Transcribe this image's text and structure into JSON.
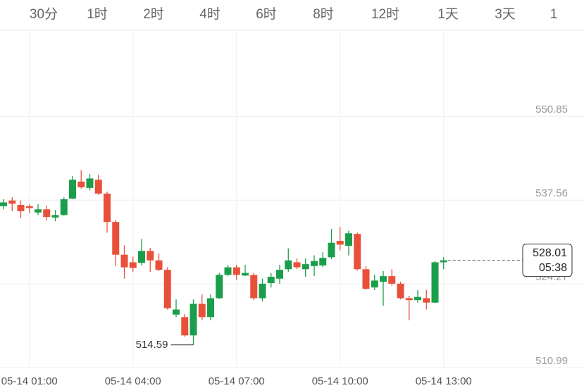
{
  "tabs": [
    "30分",
    "1时",
    "2时",
    "4时",
    "6时",
    "8时",
    "12时",
    "1天",
    "3天",
    "1"
  ],
  "chart_data": {
    "type": "candlestick",
    "categories": [
      null,
      null,
      null,
      "05-14 01:00",
      null,
      null,
      null,
      null,
      null,
      null,
      null,
      null,
      null,
      null,
      null,
      "05-14 04:00",
      null,
      null,
      null,
      null,
      null,
      null,
      null,
      null,
      null,
      null,
      null,
      "05-14 07:00",
      null,
      null,
      null,
      null,
      null,
      null,
      null,
      null,
      null,
      null,
      null,
      "05-14 10:00",
      null,
      null,
      null,
      null,
      null,
      null,
      null,
      null,
      null,
      null,
      null,
      "05-14 13:00"
    ],
    "open": [
      536.6,
      537.5,
      536.8,
      536.6,
      535.6,
      536.1,
      534.8,
      535.2,
      537.8,
      540.5,
      539.5,
      540.8,
      538.6,
      534.1,
      528.9,
      527.7,
      527.6,
      529.5,
      528.0,
      526.5,
      519.4,
      519.0,
      516.1,
      521.1,
      519.0,
      522.0,
      525.7,
      526.9,
      525.6,
      525.7,
      522.0,
      524.4,
      525.1,
      526.6,
      527.7,
      526.6,
      527.1,
      527.2,
      528.5,
      531.1,
      530.3,
      532.2,
      526.6,
      523.7,
      524.6,
      525.5,
      524.3,
      522.0,
      521.7,
      522.0,
      521.3,
      527.7
    ],
    "high": [
      537.7,
      538.0,
      537.5,
      536.9,
      536.9,
      536.7,
      536.0,
      538.0,
      541.4,
      542.3,
      541.7,
      541.6,
      538.9,
      534.4,
      530.4,
      528.6,
      531.4,
      530.0,
      529.1,
      526.9,
      521.8,
      519.5,
      521.8,
      522.6,
      522.6,
      526.0,
      527.3,
      527.3,
      527.3,
      526.0,
      525.1,
      526.0,
      527.3,
      529.9,
      528.3,
      528.3,
      528.8,
      529.3,
      533.0,
      533.3,
      532.7,
      532.4,
      527.1,
      525.7,
      526.3,
      526.6,
      524.6,
      522.4,
      523.3,
      523.3,
      527.9,
      528.5
    ],
    "low": [
      536.1,
      535.8,
      534.7,
      535.5,
      535.2,
      534.3,
      534.2,
      535.1,
      537.7,
      539.4,
      539.1,
      538.4,
      532.4,
      527.1,
      525.1,
      526.2,
      527.2,
      526.2,
      526.3,
      520.2,
      519.0,
      515.9,
      514.59,
      518.5,
      518.5,
      521.9,
      525.5,
      524.9,
      525.5,
      521.7,
      521.5,
      523.7,
      524.3,
      526.2,
      526.6,
      525.4,
      525.5,
      526.9,
      528.2,
      529.6,
      528.8,
      526.4,
      523.3,
      523.3,
      520.8,
      524.0,
      521.8,
      518.5,
      521.3,
      520.2,
      521.2,
      526.6
    ],
    "close": [
      537.2,
      537.0,
      535.8,
      536.3,
      536.1,
      534.9,
      535.2,
      537.7,
      540.8,
      539.6,
      541.0,
      538.6,
      534.1,
      528.9,
      526.9,
      526.8,
      529.5,
      528.0,
      526.5,
      520.4,
      520.2,
      516.1,
      521.1,
      519.0,
      522.0,
      525.7,
      526.9,
      525.7,
      526.0,
      522.0,
      524.3,
      525.4,
      526.5,
      528.0,
      526.9,
      527.4,
      527.9,
      528.4,
      530.8,
      530.5,
      532.3,
      526.6,
      523.5,
      524.8,
      525.5,
      524.3,
      522.0,
      521.7,
      522.2,
      521.3,
      527.7,
      528.01
    ],
    "up_color": "#1b9e4b",
    "down_color": "#e8503a",
    "ylim": [
      510.99,
      564.29
    ],
    "yticks": [
      510.99,
      524.27,
      537.56,
      550.85
    ],
    "grid": true,
    "low_annotation": {
      "index": 22,
      "value": 514.59
    },
    "last_price": 528.01,
    "countdown": "05:38"
  }
}
